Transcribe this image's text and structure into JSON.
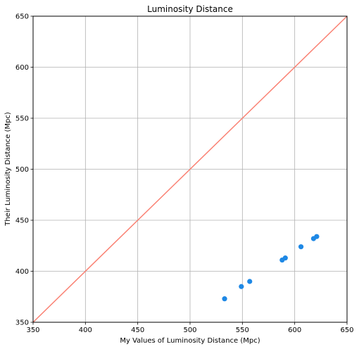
{
  "chart_data": {
    "type": "scatter",
    "title": "Luminosity Distance",
    "xlabel": "My Values of Luminosity Distance (Mpc)",
    "ylabel": "Their Luminosity Distance (Mpc)",
    "xlim": [
      350,
      650
    ],
    "ylim": [
      350,
      650
    ],
    "xticks": [
      "350",
      "400",
      "450",
      "500",
      "550",
      "600",
      "650"
    ],
    "yticks": [
      "350",
      "400",
      "450",
      "500",
      "550",
      "600",
      "650"
    ],
    "grid": true,
    "reference_line": {
      "x": [
        350,
        650
      ],
      "y": [
        350,
        650
      ],
      "color": "#fa8072"
    },
    "series": [
      {
        "color": "#1e88e5",
        "x": [
          533,
          549,
          557,
          588,
          591,
          606,
          618,
          621
        ],
        "y": [
          373,
          385,
          390,
          411,
          413,
          424,
          432,
          434
        ]
      }
    ]
  }
}
